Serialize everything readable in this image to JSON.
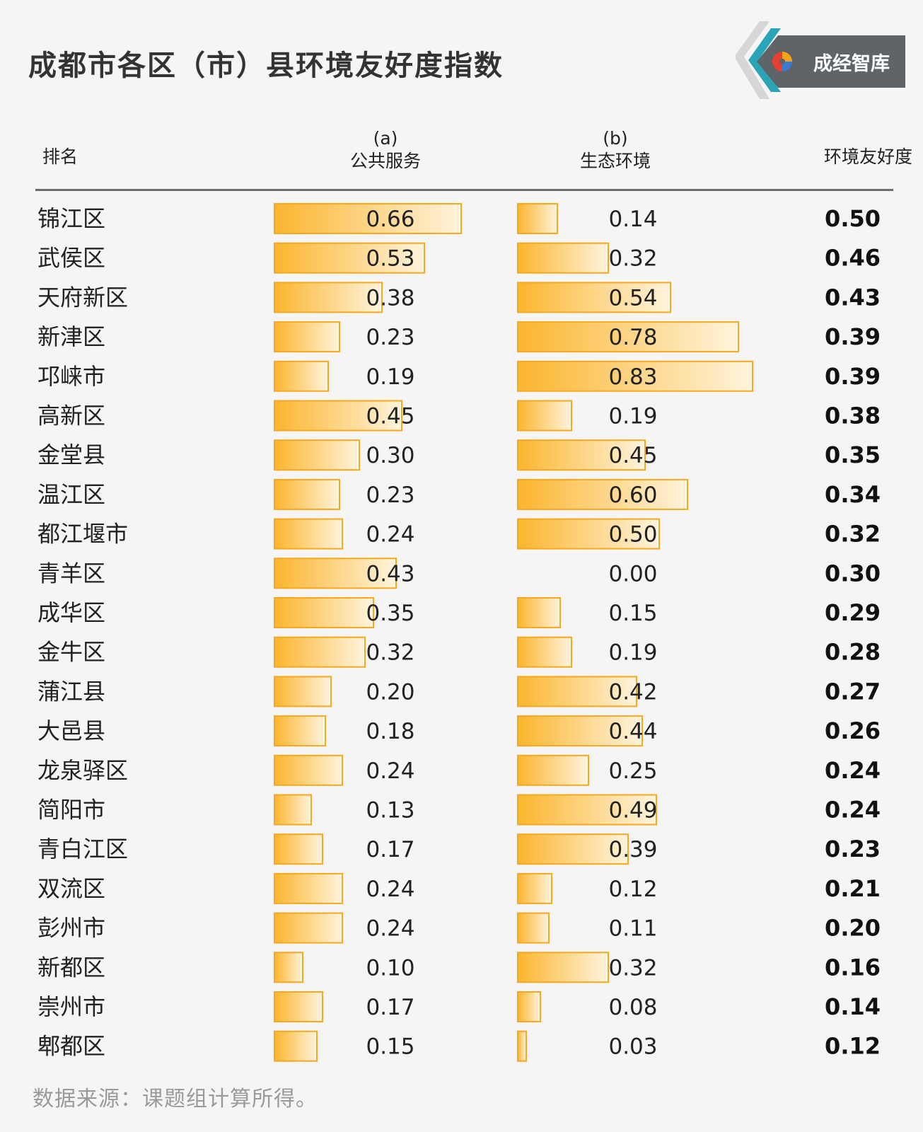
{
  "title": "成都市各区（市）县环境友好度指数",
  "logo": {
    "text": "成经智库",
    "icon": "brand-swirl-icon"
  },
  "headers": {
    "rank": "排名",
    "a_label": "(a)",
    "a_name": "公共服务",
    "b_label": "(b)",
    "b_name": "生态环境",
    "total": "环境友好度"
  },
  "source": "数据来源：课题组计算所得。",
  "colors": {
    "bar": "#FBB52E",
    "bar_light": "#FFF4DD",
    "bar_edge": "#F5A820",
    "divider": "#6B6B6B"
  },
  "chart_data": {
    "type": "bar",
    "orientation": "horizontal",
    "categories": [
      "锦江区",
      "武侯区",
      "天府新区",
      "新津区",
      "邛崃市",
      "高新区",
      "金堂县",
      "温江区",
      "都江堰市",
      "青羊区",
      "成华区",
      "金牛区",
      "蒲江县",
      "大邑县",
      "龙泉驿区",
      "简阳市",
      "青白江区",
      "双流区",
      "彭州市",
      "新都区",
      "崇州市",
      "郫都区"
    ],
    "series": [
      {
        "name": "公共服务",
        "values": [
          0.66,
          0.53,
          0.38,
          0.23,
          0.19,
          0.45,
          0.3,
          0.23,
          0.24,
          0.43,
          0.35,
          0.32,
          0.2,
          0.18,
          0.24,
          0.13,
          0.17,
          0.24,
          0.24,
          0.1,
          0.17,
          0.15
        ]
      },
      {
        "name": "生态环境",
        "values": [
          0.14,
          0.32,
          0.54,
          0.78,
          0.83,
          0.19,
          0.45,
          0.6,
          0.5,
          0.0,
          0.15,
          0.19,
          0.42,
          0.44,
          0.25,
          0.49,
          0.39,
          0.12,
          0.11,
          0.32,
          0.08,
          0.03
        ]
      },
      {
        "name": "环境友好度",
        "values": [
          0.5,
          0.46,
          0.43,
          0.39,
          0.39,
          0.38,
          0.35,
          0.34,
          0.32,
          0.3,
          0.29,
          0.28,
          0.27,
          0.26,
          0.24,
          0.24,
          0.23,
          0.21,
          0.2,
          0.16,
          0.14,
          0.12
        ]
      }
    ],
    "labels": {
      "a": [
        "0.66",
        "0.53",
        "0.38",
        "0.23",
        "0.19",
        "0.45",
        "0.30",
        "0.23",
        "0.24",
        "0.43",
        "0.35",
        "0.32",
        "0.20",
        "0.18",
        "0.24",
        "0.13",
        "0.17",
        "0.24",
        "0.24",
        "0.10",
        "0.17",
        "0.15"
      ],
      "b": [
        "0.14",
        "0.32",
        "0.54",
        "0.78",
        "0.83",
        "0.19",
        "0.45",
        "0.60",
        "0.50",
        "0.00",
        "0.15",
        "0.19",
        "0.42",
        "0.44",
        "0.25",
        "0.49",
        "0.39",
        "0.12",
        "0.11",
        "0.32",
        "0.08",
        "0.03"
      ],
      "total": [
        "0.50",
        "0.46",
        "0.43",
        "0.39",
        "0.39",
        "0.38",
        "0.35",
        "0.34",
        "0.32",
        "0.30",
        "0.29",
        "0.28",
        "0.27",
        "0.26",
        "0.24",
        "0.24",
        "0.23",
        "0.21",
        "0.20",
        "0.16",
        "0.14",
        "0.12"
      ]
    },
    "xlim": [
      0,
      1
    ]
  }
}
